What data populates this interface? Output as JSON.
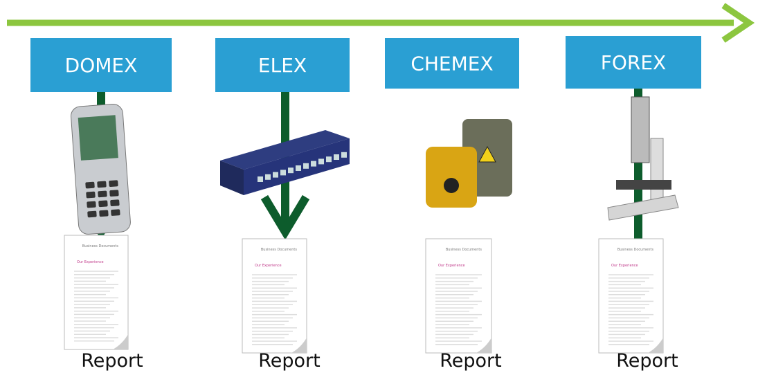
{
  "nodes": [
    {
      "label": "DOMEX",
      "report": "Report",
      "doc_title": "Business Documents",
      "doc_heading": "Our Experience"
    },
    {
      "label": "ELEX",
      "report": "Report",
      "doc_title": "Business Documents",
      "doc_heading": "Our Experience"
    },
    {
      "label": "CHEMEX",
      "report": "Report",
      "doc_title": "Business Documents",
      "doc_heading": "Our Experience"
    },
    {
      "label": "FOREX",
      "report": "Report",
      "doc_title": "Business Documents",
      "doc_heading": "Our Experience"
    }
  ]
}
